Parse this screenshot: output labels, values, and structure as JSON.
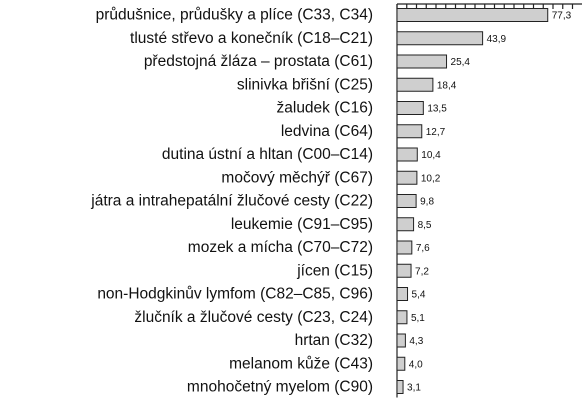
{
  "chart_data": {
    "type": "bar",
    "orientation": "horizontal",
    "title": "",
    "xlabel": "",
    "ylabel": "",
    "categories": [
      "průdušnice, průdušky a plíce (C33, C34)",
      "tlusté střevo a konečník (C18–C21)",
      "předstojná žláza – prostata (C61)",
      "slinivka břišní (C25)",
      "žaludek (C16)",
      "ledvina (C64)",
      "dutina ústní a hltan (C00–C14)",
      "močový měchýř (C67)",
      "játra a intrahepatální žlučové cesty (C22)",
      "leukemie (C91–C95)",
      "mozek a mícha (C70–C72)",
      "jícen (C15)",
      "non-Hodgkinův lymfom (C82–C85, C96)",
      "žlučník a žlučové cesty (C23, C24)",
      "hrtan (C32)",
      "melanom kůže (C43)",
      "mnohočetný myelom (C90)"
    ],
    "values": [
      77.3,
      43.9,
      25.4,
      18.4,
      13.5,
      12.7,
      10.4,
      10.2,
      9.8,
      8.5,
      7.6,
      7.2,
      5.4,
      5.1,
      4.3,
      4.0,
      3.1
    ],
    "value_labels": [
      "77,3",
      "43,9",
      "25,4",
      "18,4",
      "13,5",
      "12,7",
      "10,4",
      "10,2",
      "9,8",
      "8,5",
      "7,6",
      "7,2",
      "5,4",
      "5,1",
      "4,3",
      "4,0",
      "3,1"
    ],
    "xlim": [
      0,
      80
    ],
    "grid": false,
    "legend": "none",
    "colors": {
      "bar_fill": "#cfcfcf",
      "bar_stroke": "#222222",
      "text": "#111111"
    }
  }
}
